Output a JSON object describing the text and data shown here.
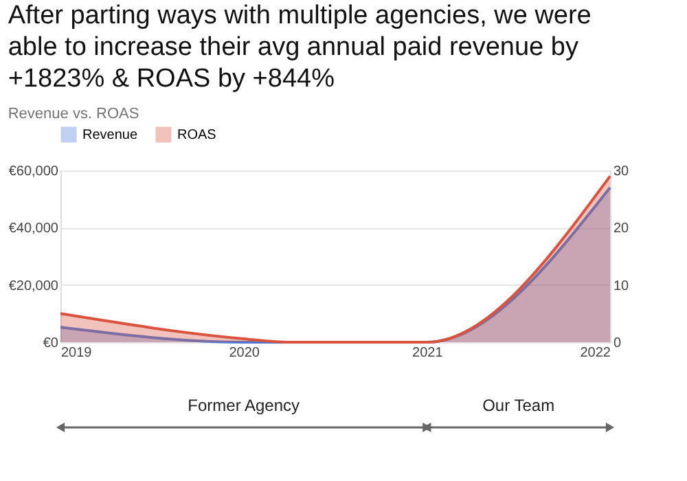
{
  "chart_data": {
    "type": "area",
    "title": "After parting ways with multiple agencies, we were able to increase their avg annual paid revenue by +1823% & ROAS by +844%",
    "subtitle": "Revenue vs. ROAS",
    "series": [
      {
        "name": "Revenue",
        "color": "#4a7bd8",
        "x": [
          2019,
          2020,
          2021,
          2022
        ],
        "values": [
          5200,
          0,
          0,
          54000
        ]
      },
      {
        "name": "ROAS",
        "color": "#d9533f",
        "axis": "y2",
        "x": [
          2019,
          2020,
          2020.25,
          2021,
          2022
        ],
        "values": [
          5,
          0.6,
          0,
          0,
          29
        ]
      }
    ],
    "xlim": [
      2019,
      2022
    ],
    "xticks": [
      2019,
      2020,
      2021,
      2022
    ],
    "ylim": [
      0,
      60000
    ],
    "yticks": [
      {
        "value": 0,
        "label": "€0"
      },
      {
        "value": 20000,
        "label": "€20,000"
      },
      {
        "value": 40000,
        "label": "€40,000"
      },
      {
        "value": 60000,
        "label": "€60,000"
      }
    ],
    "y2lim": [
      0,
      30
    ],
    "y2ticks": [
      0,
      10,
      20,
      30
    ],
    "grid": "y",
    "legend": "top",
    "annotations": [
      "Former Agency",
      "Our Team"
    ]
  }
}
